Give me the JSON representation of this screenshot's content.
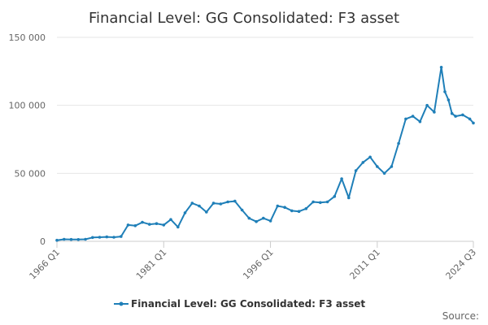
{
  "chart_data": {
    "type": "line",
    "title": "Financial Level: GG Consolidated: F3 asset",
    "xlabel": "",
    "ylabel": "",
    "ylim": [
      0,
      150000
    ],
    "yticks": [
      0,
      50000,
      100000,
      150000
    ],
    "ytick_labels": [
      "0",
      "50 000",
      "100 000",
      "150 000"
    ],
    "xtick_labels": [
      "1966 Q1",
      "1981 Q1",
      "1996 Q1",
      "2011 Q1",
      "2024 Q3"
    ],
    "grid": true,
    "legend": "bottom-center",
    "source_label": "Source:",
    "colors": {
      "series": "#1f7fb8",
      "grid": "#e6e6e6"
    },
    "series": [
      {
        "name": "Financial Level: GG Consolidated: F3 asset",
        "x": [
          "1966 Q1",
          "1967 Q1",
          "1968 Q1",
          "1969 Q1",
          "1970 Q1",
          "1971 Q1",
          "1972 Q1",
          "1973 Q1",
          "1974 Q1",
          "1975 Q1",
          "1976 Q1",
          "1977 Q1",
          "1978 Q1",
          "1979 Q1",
          "1980 Q1",
          "1981 Q1",
          "1982 Q1",
          "1983 Q1",
          "1984 Q1",
          "1985 Q1",
          "1986 Q1",
          "1987 Q1",
          "1988 Q1",
          "1989 Q1",
          "1990 Q1",
          "1991 Q1",
          "1992 Q1",
          "1993 Q1",
          "1994 Q1",
          "1995 Q1",
          "1996 Q1",
          "1997 Q1",
          "1998 Q1",
          "1999 Q1",
          "2000 Q1",
          "2001 Q1",
          "2002 Q1",
          "2003 Q1",
          "2004 Q1",
          "2005 Q1",
          "2006 Q1",
          "2007 Q1",
          "2008 Q1",
          "2009 Q1",
          "2010 Q1",
          "2011 Q1",
          "2012 Q1",
          "2013 Q1",
          "2014 Q1",
          "2015 Q1",
          "2016 Q1",
          "2017 Q1",
          "2018 Q1",
          "2019 Q1",
          "2020 Q1",
          "2020 Q3",
          "2021 Q1",
          "2021 Q3",
          "2022 Q1",
          "2023 Q1",
          "2024 Q1",
          "2024 Q3"
        ],
        "values": [
          800,
          1500,
          1400,
          1300,
          1500,
          2800,
          3000,
          3200,
          3000,
          3500,
          12000,
          11500,
          14000,
          12500,
          13000,
          12000,
          16000,
          10500,
          21000,
          28000,
          26000,
          21500,
          28000,
          27500,
          29000,
          29500,
          23000,
          17000,
          14500,
          17000,
          15000,
          26000,
          25000,
          22500,
          22000,
          24000,
          29000,
          28500,
          29000,
          33000,
          46000,
          32000,
          52000,
          58000,
          62000,
          55000,
          50000,
          55000,
          72000,
          90000,
          92000,
          88000,
          100000,
          95000,
          128000,
          110000,
          104000,
          94000,
          92000,
          93000,
          90000,
          87000
        ]
      }
    ]
  }
}
